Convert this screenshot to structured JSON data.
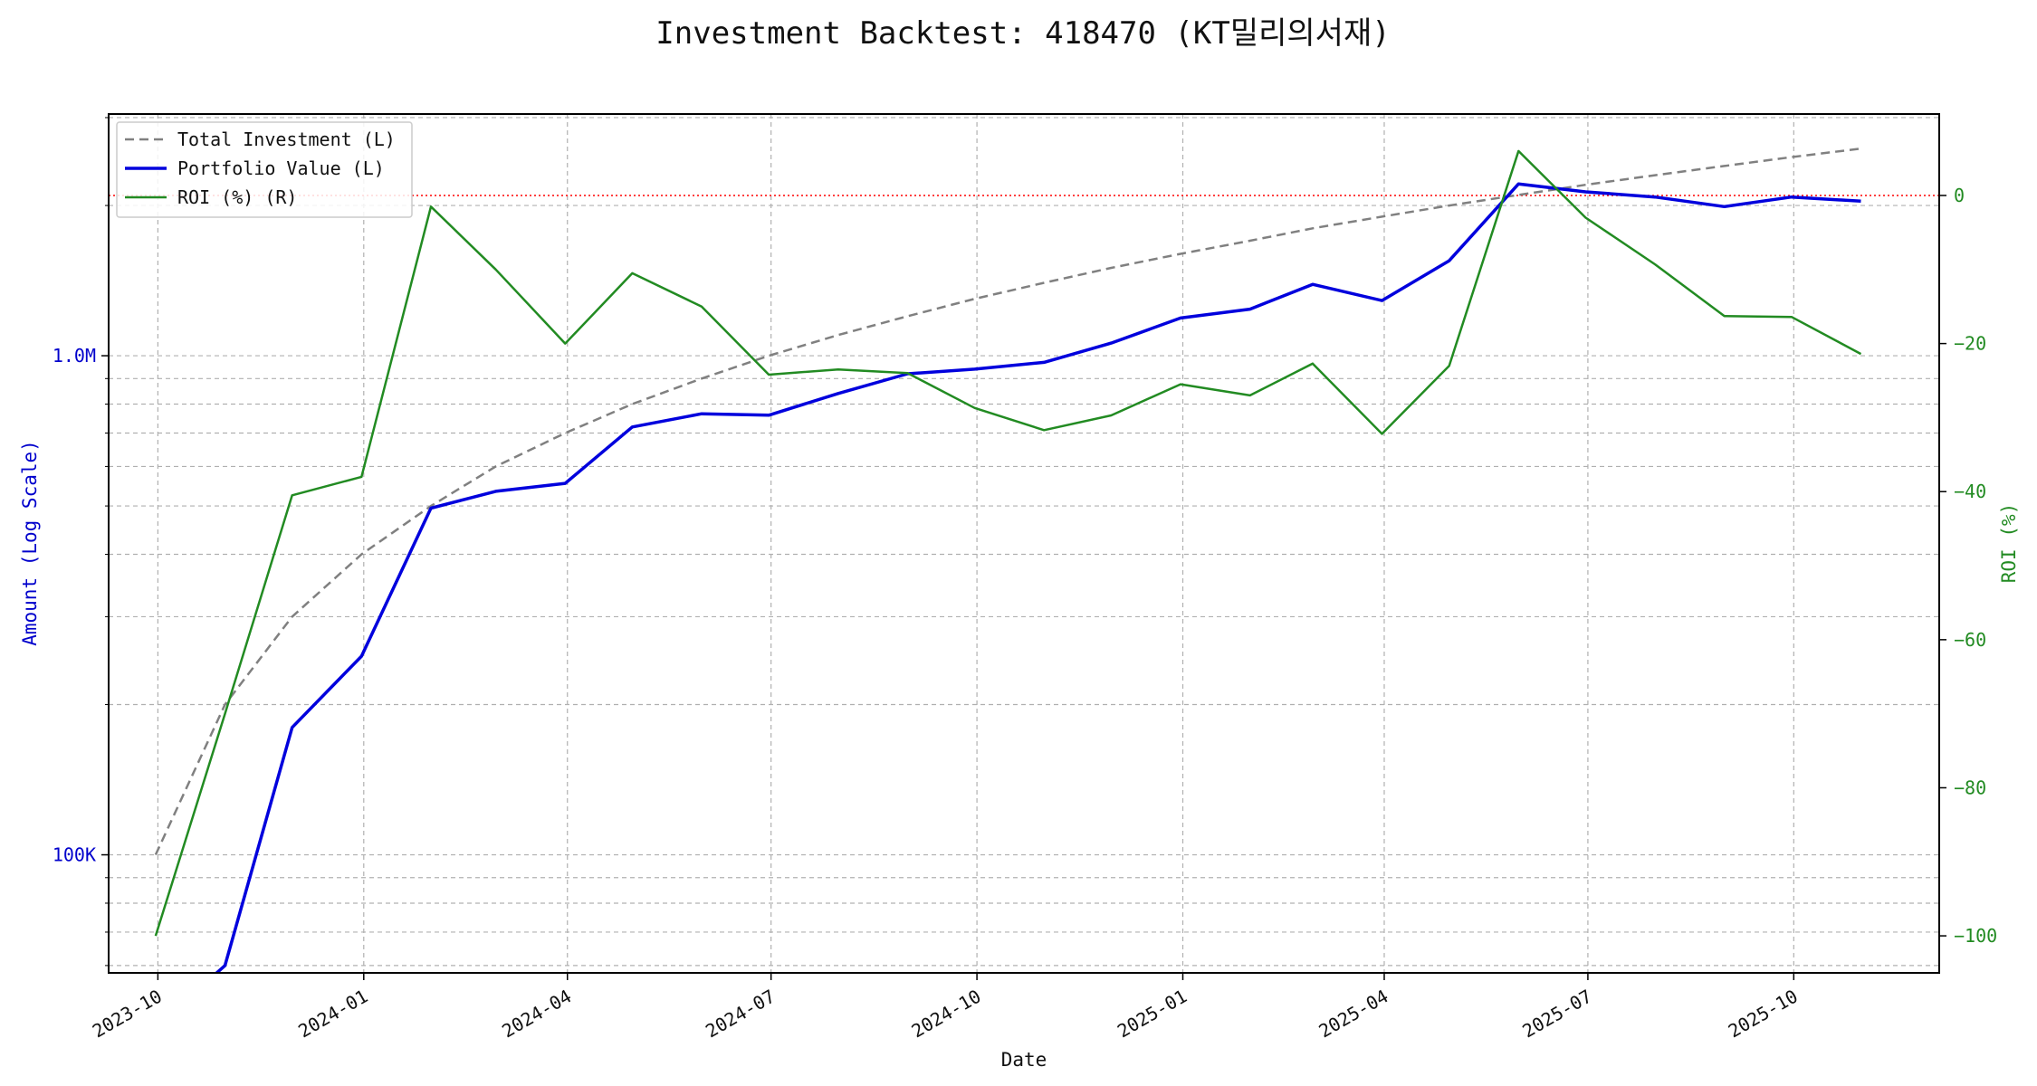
{
  "chart_data": {
    "type": "line",
    "title": "Investment Backtest: 418470 (KT밀리의서재)",
    "xlabel": "Date",
    "ylabel_left": "Amount (Log Scale)",
    "ylabel_right": "ROI (%)",
    "left_axis": {
      "scale": "log",
      "range": [
        58000,
        3050000
      ],
      "tick_values": [
        100000,
        1000000
      ],
      "tick_labels": [
        "100K",
        "1.0M"
      ],
      "color": "#0000cc"
    },
    "right_axis": {
      "range": [
        -105,
        11
      ],
      "tick_values": [
        0,
        -20,
        -40,
        -60,
        -80,
        -100
      ],
      "tick_labels": [
        "0",
        "−20",
        "−40",
        "−60",
        "−80",
        "−100"
      ],
      "color": "#228b22"
    },
    "x_axis": {
      "range": [
        "2023-09-09",
        "2025-12-05"
      ],
      "tick_values": [
        "2023-10-01",
        "2024-01-01",
        "2024-04-01",
        "2024-07-01",
        "2024-10-01",
        "2025-01-01",
        "2025-04-01",
        "2025-07-01",
        "2025-10-01"
      ],
      "tick_labels": [
        "2023-10",
        "2024-01",
        "2024-04",
        "2024-07",
        "2024-10",
        "2025-01",
        "2025-04",
        "2025-07",
        "2025-10"
      ]
    },
    "grid": true,
    "legend_position": "top-left",
    "zero_reference_line": {
      "value": 0,
      "axis": "right",
      "color": "#ff0000",
      "style": "dotted"
    },
    "x": [
      "2023-09-30",
      "2023-10-31",
      "2023-11-30",
      "2023-12-31",
      "2024-01-31",
      "2024-02-29",
      "2024-03-31",
      "2024-04-30",
      "2024-05-31",
      "2024-06-30",
      "2024-07-31",
      "2024-08-31",
      "2024-09-30",
      "2024-10-31",
      "2024-11-30",
      "2024-12-31",
      "2025-01-31",
      "2025-02-28",
      "2025-03-31",
      "2025-04-30",
      "2025-05-31",
      "2025-06-30",
      "2025-07-31",
      "2025-08-31",
      "2025-09-30",
      "2025-10-31"
    ],
    "series": [
      {
        "name": "Total Investment (L)",
        "axis": "left",
        "color": "#808080",
        "style": "dashed",
        "values": [
          100000,
          200000,
          300000,
          400000,
          500000,
          600000,
          700000,
          800000,
          900000,
          1000000,
          1100000,
          1200000,
          1300000,
          1400000,
          1500000,
          1600000,
          1700000,
          1800000,
          1900000,
          2000000,
          2100000,
          2200000,
          2300000,
          2400000,
          2500000,
          2600000
        ]
      },
      {
        "name": "Portfolio Value (L)",
        "axis": "left",
        "color": "#0000dd",
        "style": "solid-thick",
        "values": [
          0,
          60000,
          180000,
          250000,
          495000,
          535000,
          555000,
          720000,
          765000,
          760000,
          840000,
          920000,
          940000,
          970000,
          1060000,
          1190000,
          1240000,
          1390000,
          1290000,
          1550000,
          2210000,
          2130000,
          2080000,
          1990000,
          2080000,
          2040000
        ]
      },
      {
        "name": "ROI (%) (R)",
        "axis": "right",
        "color": "#228b22",
        "style": "solid",
        "values": [
          -100,
          -70,
          -40.5,
          -38,
          -1.5,
          -10,
          -20,
          -10.5,
          -15,
          -24.2,
          -23.5,
          -24,
          -28.7,
          -31.7,
          -29.7,
          -25.5,
          -27,
          -22.7,
          -32.2,
          -23,
          6,
          -3,
          -9.3,
          -16.3,
          -16.4,
          -21.4
        ]
      }
    ]
  }
}
